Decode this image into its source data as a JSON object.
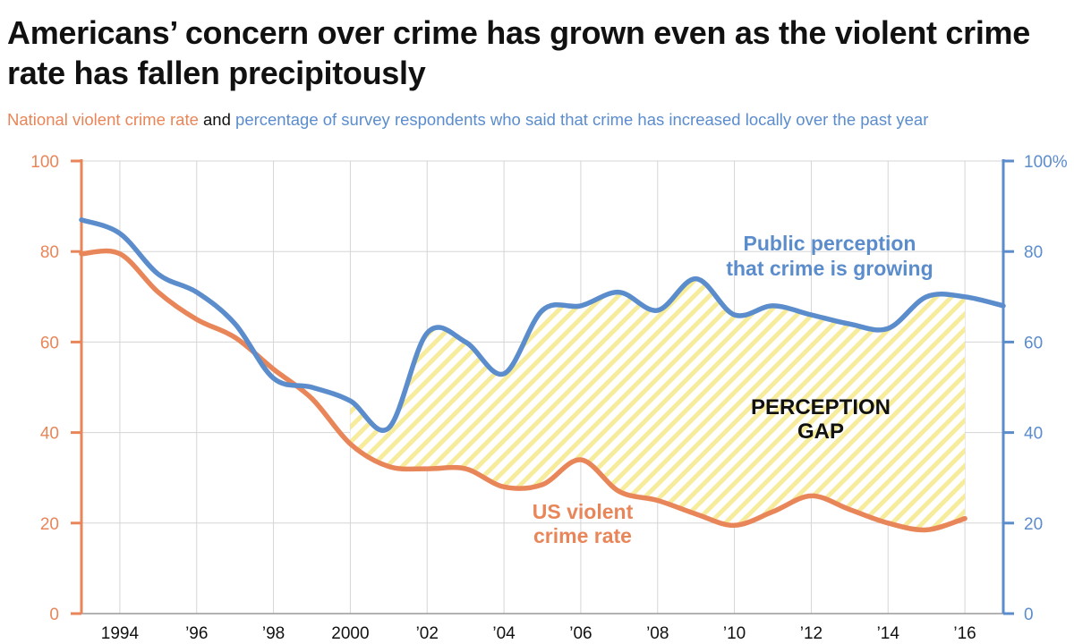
{
  "title": "Americans’ concern over crime has grown even as the violent crime rate has fallen precipitously",
  "subtitle": {
    "part1": "National violent crime rate",
    "part2": " and ",
    "part3": "percentage of survey respondents who said that crime has increased locally over the past year"
  },
  "colors": {
    "crime": "#e8865a",
    "perception": "#5b8ccc",
    "gap_stripe": "#f7ec9c",
    "grid": "#d5d5d5",
    "text": "#111111"
  },
  "annotations": {
    "perception_line1": "Public perception",
    "perception_line2": "that crime is growing",
    "crime_line1": "US violent",
    "crime_line2": "crime rate",
    "gap_line1": "PERCEPTION",
    "gap_line2": "GAP"
  },
  "chart_data": {
    "type": "line",
    "x_ticks": [
      {
        "x": 1994,
        "label": "1994"
      },
      {
        "x": 1996,
        "label": "’96"
      },
      {
        "x": 1998,
        "label": "’98"
      },
      {
        "x": 2000,
        "label": "2000"
      },
      {
        "x": 2002,
        "label": "’02"
      },
      {
        "x": 2004,
        "label": "’04"
      },
      {
        "x": 2006,
        "label": "’06"
      },
      {
        "x": 2008,
        "label": "’08"
      },
      {
        "x": 2010,
        "label": "’10"
      },
      {
        "x": 2012,
        "label": "’12"
      },
      {
        "x": 2014,
        "label": "’14"
      },
      {
        "x": 2016,
        "label": "’16"
      }
    ],
    "xlim": [
      1993,
      2017
    ],
    "left_axis": {
      "ticks": [
        0,
        20,
        40,
        60,
        80,
        100
      ],
      "tick_labels": [
        "0",
        "20",
        "40",
        "60",
        "80",
        "100"
      ],
      "ylim": [
        0,
        100
      ]
    },
    "right_axis": {
      "ticks": [
        0,
        20,
        40,
        60,
        80,
        100
      ],
      "tick_labels": [
        "0",
        "20",
        "40",
        "60",
        "80",
        "100%"
      ],
      "ylim": [
        0,
        100
      ]
    },
    "grid": true,
    "series": [
      {
        "name": "US violent crime rate",
        "axis": "left",
        "x": [
          1993,
          1994,
          1995,
          1996,
          1997,
          1998,
          1999,
          2000,
          2001,
          2002,
          2003,
          2004,
          2005,
          2006,
          2007,
          2008,
          2009,
          2010,
          2011,
          2012,
          2013,
          2014,
          2015,
          2016
        ],
        "values": [
          79.5,
          79.5,
          71,
          65,
          61,
          54,
          47.5,
          37.5,
          32.5,
          32,
          32,
          28,
          28.5,
          34,
          27,
          25,
          22,
          19.5,
          22.5,
          26,
          23,
          20,
          18.5,
          21
        ]
      },
      {
        "name": "Public perception that crime is growing",
        "axis": "right",
        "x": [
          1993,
          1994,
          1995,
          1996,
          1997,
          1998,
          1999,
          2000,
          2001,
          2002,
          2003,
          2004,
          2005,
          2006,
          2007,
          2008,
          2009,
          2010,
          2011,
          2012,
          2013,
          2014,
          2015,
          2016,
          2017
        ],
        "values": [
          87,
          84,
          75,
          71,
          64,
          52,
          50,
          47,
          41,
          62,
          60,
          53,
          67,
          68,
          71,
          67,
          74,
          66,
          68,
          66,
          64,
          63,
          70,
          70,
          68
        ]
      }
    ],
    "gap_range": [
      2000,
      2016
    ]
  }
}
